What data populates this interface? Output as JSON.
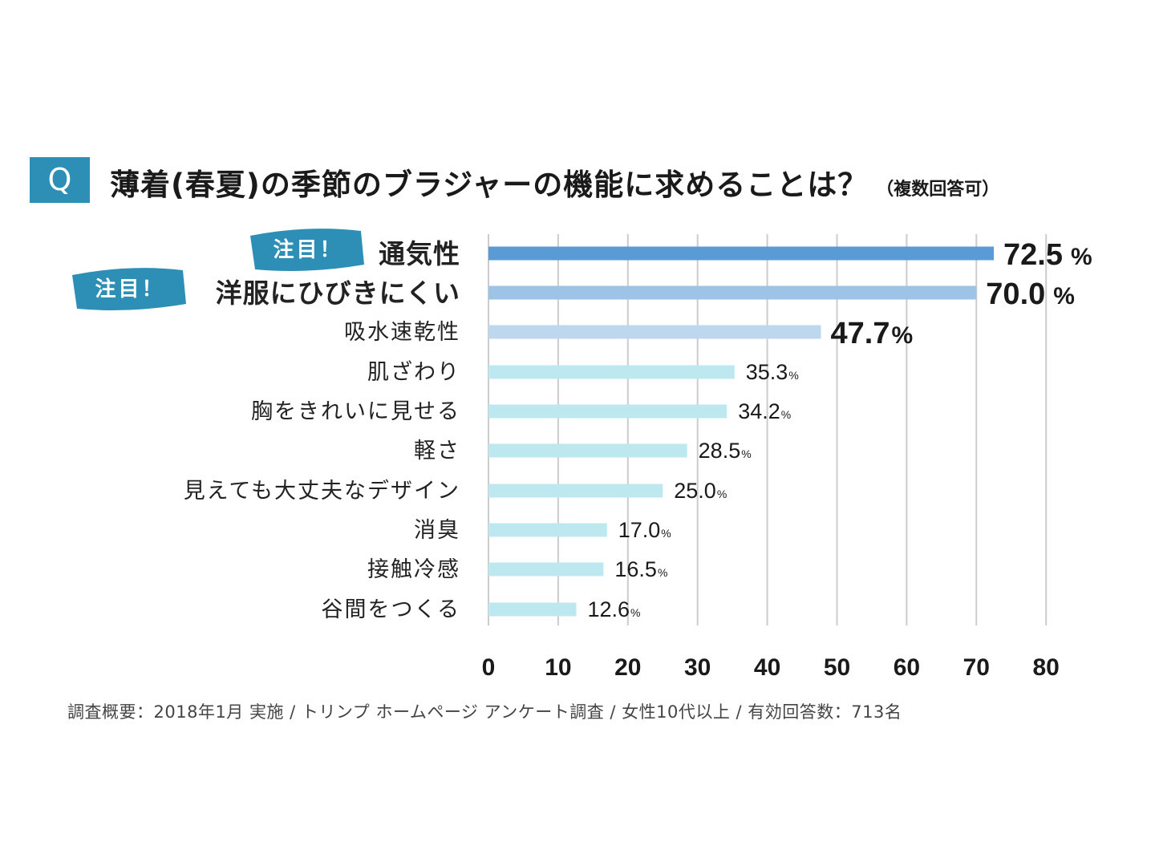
{
  "question": {
    "badge": "Q",
    "title": "薄着(春夏)の季節のブラジャーの機能に求めることは？",
    "subtitle": "（複数回答可）"
  },
  "highlight_tag": "注目！",
  "colors": {
    "accent": "#2e8fb6",
    "bar_top": "#5b9bd5",
    "bar_second": "#9dc3e6",
    "bar_third": "#bdd7ee",
    "bar_rest": "#bde8f0",
    "grid": "#cccccc"
  },
  "chart_data": {
    "type": "bar",
    "orientation": "horizontal",
    "categories": [
      "通気性",
      "洋服にひびきにくい",
      "吸水速乾性",
      "肌ざわり",
      "胸をきれいに見せる",
      "軽さ",
      "見えても大丈夫なデザイン",
      "消臭",
      "接触冷感",
      "谷間をつくる"
    ],
    "values": [
      72.5,
      70.0,
      47.7,
      35.3,
      34.2,
      28.5,
      25.0,
      17.0,
      16.5,
      12.6
    ],
    "value_labels": [
      "72.5",
      "70.0",
      "47.7",
      "35.3",
      "34.2",
      "28.5",
      "25.0",
      "17.0",
      "16.5",
      "12.6"
    ],
    "unit": "%",
    "highlighted": [
      true,
      true,
      false,
      false,
      false,
      false,
      false,
      false,
      false,
      false
    ],
    "xlim": [
      0,
      80
    ],
    "xticks": [
      0,
      10,
      20,
      30,
      40,
      50,
      60,
      70,
      80
    ],
    "grid": true
  },
  "footnote": "調査概要：2018年1月 実施 / トリンプ ホームページ アンケート調査 / 女性10代以上 / 有効回答数：713名"
}
